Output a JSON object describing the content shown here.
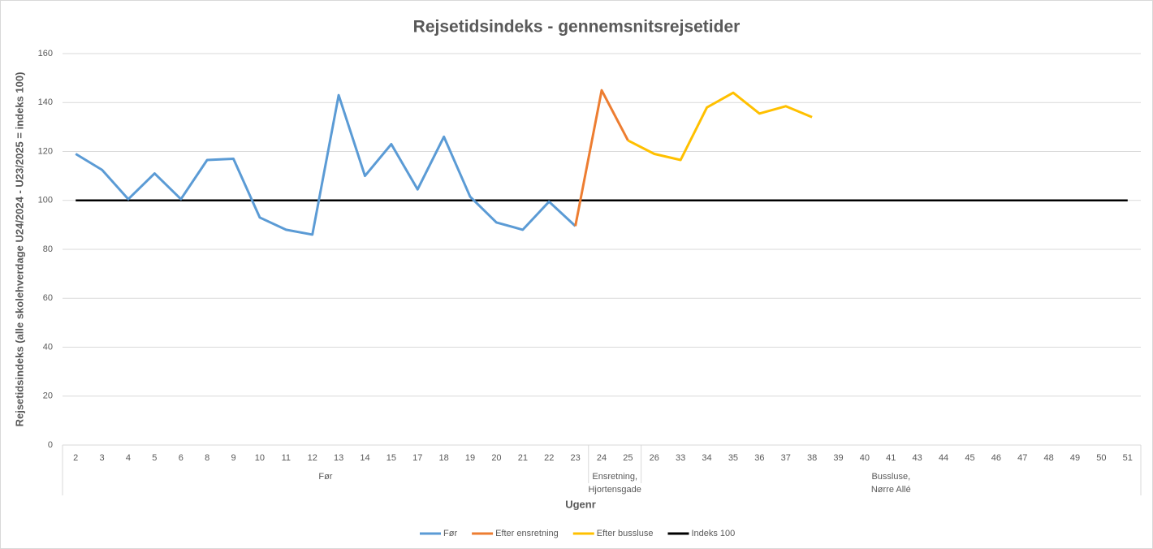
{
  "chart_data": {
    "type": "line",
    "title": "Rejsetidsindeks - gennemsnitsrejsetider",
    "y_label": "Rejsetidsindeks (alle skolehverdage U24/2024 - U23/2025 = indeks 100)",
    "x_label": "Ugenr",
    "groups": [
      {
        "label": [
          "Før"
        ],
        "categories": [
          "2",
          "3",
          "4",
          "5",
          "6",
          "8",
          "9",
          "10",
          "11",
          "12",
          "13",
          "14",
          "15",
          "17",
          "18",
          "19",
          "20",
          "21",
          "22",
          "23"
        ]
      },
      {
        "label": [
          "Ensretning,",
          "Hjortensgade"
        ],
        "categories": [
          "24",
          "25"
        ]
      },
      {
        "label": [
          "Bussluse,",
          "Nørre Allé"
        ],
        "categories": [
          "26",
          "33",
          "34",
          "35",
          "36",
          "37",
          "38",
          "39",
          "40",
          "41",
          "43",
          "44",
          "45",
          "46",
          "47",
          "48",
          "49",
          "50",
          "51"
        ]
      }
    ],
    "series": [
      {
        "name": "Før",
        "color": "#5b9bd5",
        "values": [
          119,
          112.5,
          100.5,
          111,
          100.5,
          116.5,
          117,
          93,
          88,
          86,
          143,
          110,
          123,
          104.5,
          126,
          101.5,
          91,
          88,
          99.5,
          89.5,
          null,
          null,
          null,
          null,
          null,
          null,
          null,
          null,
          null,
          null,
          null,
          null,
          null,
          null,
          null,
          null,
          null,
          null,
          null,
          null,
          null
        ]
      },
      {
        "name": "Efter ensretning",
        "color": "#ed7d31",
        "values": [
          null,
          null,
          null,
          null,
          null,
          null,
          null,
          null,
          null,
          null,
          null,
          null,
          null,
          null,
          null,
          null,
          null,
          null,
          null,
          89.5,
          145,
          124.5,
          null,
          null,
          null,
          null,
          null,
          null,
          null,
          null,
          null,
          null,
          null,
          null,
          null,
          null,
          null,
          null,
          null,
          null,
          null
        ]
      },
      {
        "name": "Efter bussluse",
        "color": "#ffc000",
        "values": [
          null,
          null,
          null,
          null,
          null,
          null,
          null,
          null,
          null,
          null,
          null,
          null,
          null,
          null,
          null,
          null,
          null,
          null,
          null,
          null,
          null,
          124.5,
          119,
          116.5,
          138,
          144,
          135.5,
          138.5,
          134,
          null,
          null,
          null,
          null,
          null,
          null,
          null,
          null,
          null,
          null,
          null,
          null
        ]
      },
      {
        "name": "Indeks 100",
        "color": "#000000",
        "values": [
          100,
          100,
          100,
          100,
          100,
          100,
          100,
          100,
          100,
          100,
          100,
          100,
          100,
          100,
          100,
          100,
          100,
          100,
          100,
          100,
          100,
          100,
          100,
          100,
          100,
          100,
          100,
          100,
          100,
          100,
          100,
          100,
          100,
          100,
          100,
          100,
          100,
          100,
          100,
          100,
          100
        ]
      }
    ],
    "ylim": [
      0,
      160
    ],
    "yticks": [
      0,
      20,
      40,
      60,
      80,
      100,
      120,
      140,
      160
    ],
    "grid": true,
    "legend": "bottom"
  }
}
